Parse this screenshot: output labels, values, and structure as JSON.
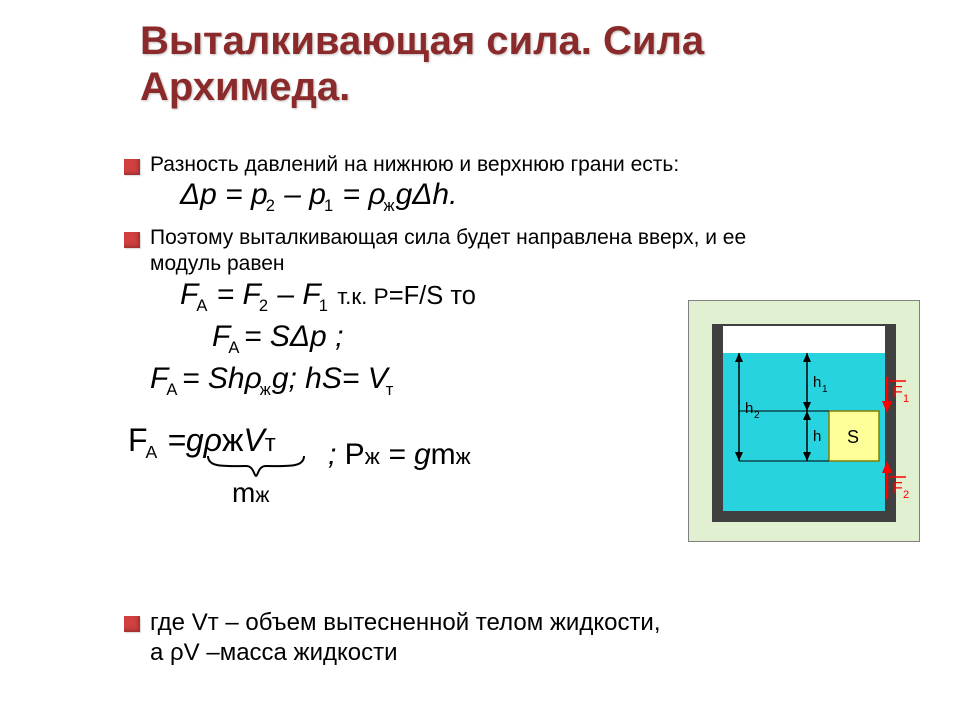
{
  "title": "Выталкивающая сила. Сила Архимеда.",
  "text": {
    "line1": "Разность давлений на нижнюю и верхнюю грани есть:",
    "line2": "Поэтому выталкивающая сила   будет направлена вверх, и ее модуль равен",
    "footer1": "где Vт – объем вытесненной телом жидкости,",
    "footer2": "а ρV –масса жидкости"
  },
  "formulas": {
    "dp_html": "Δ<span class='it'>p</span> = <span class='it'>p</span><span class='sub'>2</span> – <span class='it'>p</span><span class='sub'>1</span> = ρ<span class='sub'>ж</span><span class='it'>g</span>Δ<span class='it'>h</span>.",
    "fa1_html": "F<span class='sub'>A</span> = F<span class='sub'>2</span> – F<span class='sub'>1</span>   <span class='up' style='font-size:0.75em'>т.к.  P</span><span class='up' style='font-size:0.85em'>=F/S то</span>",
    "fa2_html": "F<span class='sub'>A </span>= <span class='it'>S</span>Δ<span class='it'>p </span>;",
    "fa3_html": "F<span class='sub'>A </span>= <span class='it'>Sh</span>ρ<span class='sub'>ж</span><span class='it'>g</span>;   <span class='it'>hS</span>= <span class='it'>V</span><span class='sub'>т</span>",
    "fa4_html": "<span class='up'>F</span><span class='sub'>A</span> =<span class='it'>g</span>ρ<span class='up'>ж</span><span class='it'>V</span><span class='up' style='font-size:0.75em'>т</span>",
    "pzh_html": ";  <span class='up'>Р</span><span class='up' style='font-size:0.75em'>ж</span> = <span class='it'>g</span><span class='up'>m</span><span class='up' style='font-size:0.75em'>ж</span>",
    "mzh_html": "m<span style='font-size:0.75em'>ж</span>"
  },
  "diagram": {
    "background": "#e0f0d0",
    "beaker_border": "#404040",
    "beaker_fill": "#ffffff",
    "water_fill": "#26d3de",
    "block_fill": "#ffff99",
    "block_border": "#808000",
    "arrow_color": "#ff0000",
    "label_color": "#000000",
    "labels": {
      "h1": "h₁",
      "h2": "h₂",
      "h": "h",
      "s": "S",
      "f1": "F₁",
      "f2": "F₂"
    }
  },
  "colors": {
    "title": "#8b2a2a",
    "bullet": "#d04040",
    "text": "#000000",
    "bg": "#ffffff"
  },
  "fonts": {
    "title_pt": 40,
    "body_pt": 21,
    "formula_pt": 30
  }
}
